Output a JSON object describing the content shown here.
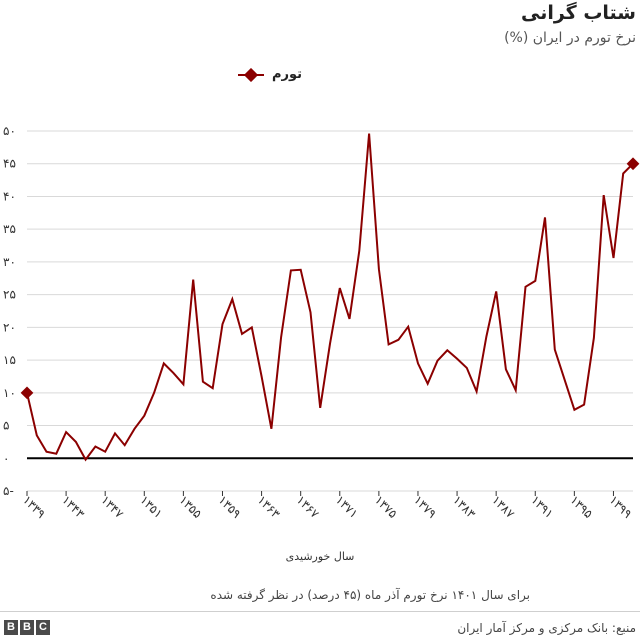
{
  "header": {
    "title": "شتاب گرانی",
    "subtitle": "نرخ تورم در ایران (%)"
  },
  "legend": {
    "label": "تورم"
  },
  "footnote": "برای سال ۱۴۰۱ نرخ تورم آذر ماه (۴۵ درصد) در نظر گرفته شده",
  "source": "منبع: بانک مرکزی و مرکز آمار ایران",
  "brand": {
    "letters": [
      "B",
      "B",
      "C"
    ]
  },
  "chart_data": {
    "type": "line",
    "title": "شتاب گرانی",
    "subtitle": "نرخ تورم در ایران (%)",
    "xlabel": "سال خورشیدی",
    "ylabel": "",
    "ylim": [
      -5,
      50
    ],
    "yticks": [
      -5,
      0,
      5,
      10,
      15,
      20,
      25,
      30,
      35,
      40,
      45,
      50
    ],
    "ytick_labels": [
      "۵-",
      "۰",
      "۵",
      "۱۰",
      "۱۵",
      "۲۰",
      "۲۵",
      "۳۰",
      "۳۵",
      "۴۰",
      "۴۵",
      "۵۰"
    ],
    "xticks": [
      1339,
      1343,
      1347,
      1351,
      1355,
      1359,
      1363,
      1367,
      1371,
      1375,
      1379,
      1383,
      1387,
      1391,
      1395,
      1399
    ],
    "xtick_labels": [
      "۱۳۳۹",
      "۱۳۴۳",
      "۱۳۴۷",
      "۱۳۵۱",
      "۱۳۵۵",
      "۱۳۵۹",
      "۱۳۶۳",
      "۱۳۶۷",
      "۱۳۷۱",
      "۱۳۷۵",
      "۱۳۷۹",
      "۱۳۸۳",
      "۱۳۸۷",
      "۱۳۹۱",
      "۱۳۹۵",
      "۱۳۹۹"
    ],
    "grid": true,
    "legend_position": "top",
    "color": "#8b0000",
    "x": [
      1339,
      1340,
      1341,
      1342,
      1343,
      1344,
      1345,
      1346,
      1347,
      1348,
      1349,
      1350,
      1351,
      1352,
      1353,
      1354,
      1355,
      1356,
      1357,
      1358,
      1359,
      1360,
      1361,
      1362,
      1363,
      1364,
      1365,
      1366,
      1367,
      1368,
      1369,
      1370,
      1371,
      1372,
      1373,
      1374,
      1375,
      1376,
      1377,
      1378,
      1379,
      1380,
      1381,
      1382,
      1383,
      1384,
      1385,
      1386,
      1387,
      1388,
      1389,
      1390,
      1391,
      1392,
      1393,
      1394,
      1395,
      1396,
      1397,
      1398,
      1399,
      1400,
      1401
    ],
    "series": [
      {
        "name": "تورم",
        "values": [
          10,
          3.5,
          1,
          0.7,
          4,
          2.5,
          -0.2,
          1.8,
          1,
          3.8,
          2,
          4.5,
          6.5,
          10,
          14.5,
          13,
          11.3,
          27.3,
          11.7,
          10.7,
          20.5,
          24.3,
          19,
          20,
          12.5,
          4.5,
          18.5,
          28.7,
          28.8,
          22.3,
          7.7,
          17.5,
          26,
          21.3,
          31.7,
          49.6,
          28.9,
          17.4,
          18.1,
          20.1,
          14.5,
          11.4,
          14.9,
          16.5,
          15.2,
          13.8,
          10.2,
          18.6,
          25.5,
          13.6,
          10.4,
          26.2,
          27.1,
          36.8,
          16.6,
          12,
          7.4,
          8.2,
          18.4,
          40.2,
          30.6,
          43.5,
          45
        ]
      }
    ]
  }
}
